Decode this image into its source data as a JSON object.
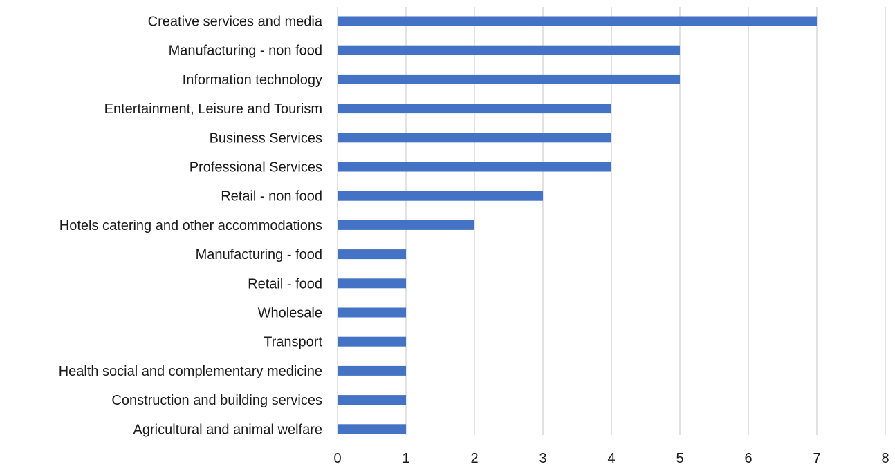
{
  "chart_data": {
    "type": "bar",
    "orientation": "horizontal",
    "categories": [
      "Creative services and media",
      "Manufacturing - non food",
      "Information technology",
      "Entertainment, Leisure and Tourism",
      "Business Services",
      "Professional Services",
      "Retail - non food",
      "Hotels catering and other accommodations",
      "Manufacturing - food",
      "Retail - food",
      "Wholesale ",
      "Transport",
      "Health social and complementary medicine",
      "Construction and building services",
      "Agricultural and animal welfare"
    ],
    "values": [
      7,
      5,
      5,
      4,
      4,
      4,
      3,
      2,
      1,
      1,
      1,
      1,
      1,
      1,
      1
    ],
    "xlim": [
      0,
      8
    ],
    "xticks": [
      "0",
      "1",
      "2",
      "3",
      "4",
      "5",
      "6",
      "7",
      "8"
    ],
    "title": "",
    "xlabel": "",
    "ylabel": "",
    "grid": "vertical gridlines",
    "legend": "none",
    "colors": {
      "bar": "#4472c4",
      "grid": "#d9d9d9",
      "text": "#1a1a1a"
    }
  }
}
